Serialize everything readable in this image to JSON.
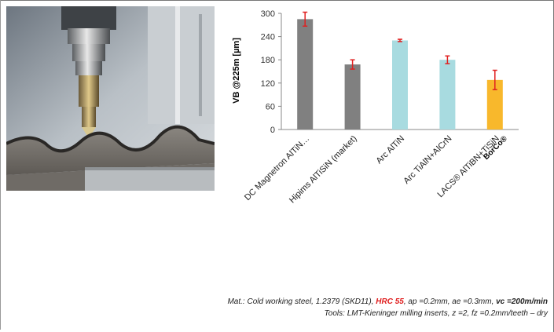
{
  "chart_data": {
    "type": "bar",
    "ylabel": "VB @225m [µm]",
    "ylim": [
      0,
      300
    ],
    "yticks": [
      0,
      60,
      120,
      180,
      240,
      300
    ],
    "categories": [
      "DC Magnetron  AlTiN…",
      "Hipims AlTiSiN (market)",
      "Arc AlTiN",
      "Arc  TiAlN+AlCrN",
      "LACS® AlTiBN+TiSiN"
    ],
    "category_sublabel": {
      "index": 4,
      "text": "BorCo®"
    },
    "values": [
      285,
      168,
      230,
      180,
      128
    ],
    "errors": [
      18,
      12,
      3,
      10,
      25
    ],
    "bar_colors": [
      "#808080",
      "#808080",
      "#a8dbe0",
      "#a8dbe0",
      "#f8b82c"
    ],
    "error_color": "#e02020",
    "grid": false
  },
  "notes": {
    "line1": {
      "a": "Mat.: Cold working steel, 1.2379 (SKD11), ",
      "b": "HRC 55",
      "c": ", ap =0.2mm, ae =0.3mm, ",
      "d": "vc =200m/min"
    },
    "line2": "Tools: LMT-Kieninger milling inserts, z =2, fz =0.2mm/teeth – dry"
  }
}
